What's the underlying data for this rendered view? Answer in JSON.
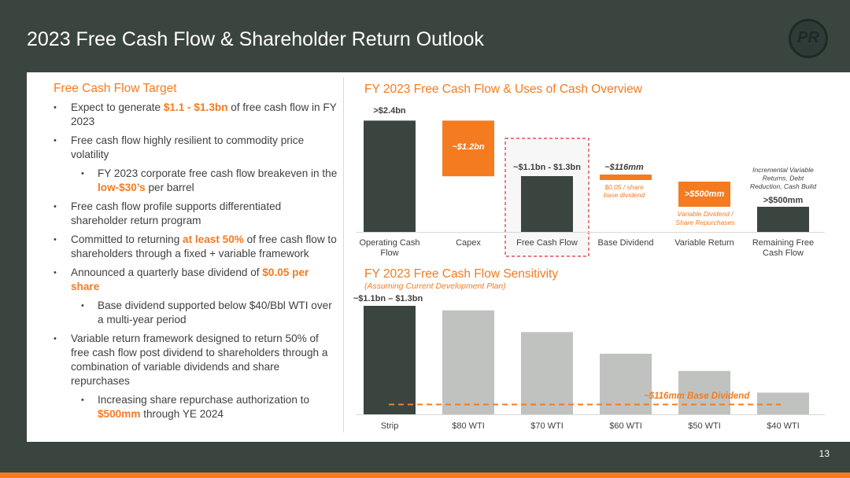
{
  "header": {
    "title": "2023 Free Cash Flow & Shareholder Return Outlook",
    "logo_text": "PR"
  },
  "page_number": "13",
  "colors": {
    "accent": "#f47b20",
    "dark": "#3a4540",
    "grey_bar": "#bfc2bf",
    "text": "#404040"
  },
  "left": {
    "title": "Free Cash Flow Target",
    "bullets": [
      {
        "level": 1,
        "parts": [
          {
            "t": "Expect to generate "
          },
          {
            "t": "$1.1 - $1.3bn",
            "hl": true
          },
          {
            "t": " of free cash flow in FY 2023"
          }
        ]
      },
      {
        "level": 1,
        "parts": [
          {
            "t": "Free cash flow highly resilient to commodity price volatility"
          }
        ]
      },
      {
        "level": 2,
        "parts": [
          {
            "t": "FY 2023 corporate free cash flow breakeven in the "
          },
          {
            "t": "low-$30’s",
            "hl": true
          },
          {
            "t": " per barrel"
          }
        ]
      },
      {
        "level": 1,
        "parts": [
          {
            "t": "Free cash flow profile supports differentiated shareholder return program"
          }
        ]
      },
      {
        "level": 1,
        "parts": [
          {
            "t": "Committed to returning "
          },
          {
            "t": "at least 50%",
            "hl": true
          },
          {
            "t": " of free cash flow to shareholders through a fixed + variable framework"
          }
        ]
      },
      {
        "level": 1,
        "parts": [
          {
            "t": "Announced a quarterly base dividend of "
          },
          {
            "t": "$0.05 per share",
            "hl": true
          }
        ]
      },
      {
        "level": 2,
        "parts": [
          {
            "t": "Base dividend supported below $40/Bbl WTI over a multi-year period"
          }
        ]
      },
      {
        "level": 1,
        "parts": [
          {
            "t": "Variable return framework designed to return 50% of free cash flow post dividend to shareholders through a combination of variable dividends and share repurchases"
          }
        ]
      },
      {
        "level": 2,
        "parts": [
          {
            "t": "Increasing share repurchase authorization to "
          },
          {
            "t": "$500mm",
            "hl": true
          },
          {
            "t": " through YE  2024"
          }
        ]
      }
    ]
  },
  "chart_data": [
    {
      "type": "bar",
      "title": "FY 2023 Free Cash Flow & Uses of Cash Overview",
      "categories": [
        "Operating Cash Flow",
        "Capex",
        "Free Cash Flow",
        "Base Dividend",
        "Variable Return",
        "Remaining Free Cash Flow"
      ],
      "values": [
        2.4,
        -1.2,
        1.2,
        -0.116,
        -0.5,
        0.5
      ],
      "data_labels": [
        ">$2.4bn",
        "~$1.2bn",
        "~$1.1bn - $1.3bn",
        "~$116mm",
        ">$500mm",
        ">$500mm"
      ],
      "annotations": [
        "$0.05 / share base dividend",
        "Variable Dividend / Share Repurchases",
        "Incremental Variable Returns, Debt Reduction, Cash Build"
      ],
      "unit": "bn",
      "style": "waterfall"
    },
    {
      "type": "bar",
      "title": "FY 2023 Free Cash Flow Sensitivity",
      "subtitle": "(Assuming Current Development Plan)",
      "categories": [
        "Strip",
        "$80 WTI",
        "$70 WTI",
        "$60 WTI",
        "$50 WTI",
        "$40 WTI"
      ],
      "values": [
        1.2,
        1.15,
        0.91,
        0.67,
        0.48,
        0.24
      ],
      "data_labels": [
        "~$1.1bn – $1.3bn",
        "",
        "",
        "",
        "",
        ""
      ],
      "reference_line": {
        "value": 0.116,
        "label": "~$116mm Base Dividend"
      },
      "unit": "bn"
    }
  ]
}
